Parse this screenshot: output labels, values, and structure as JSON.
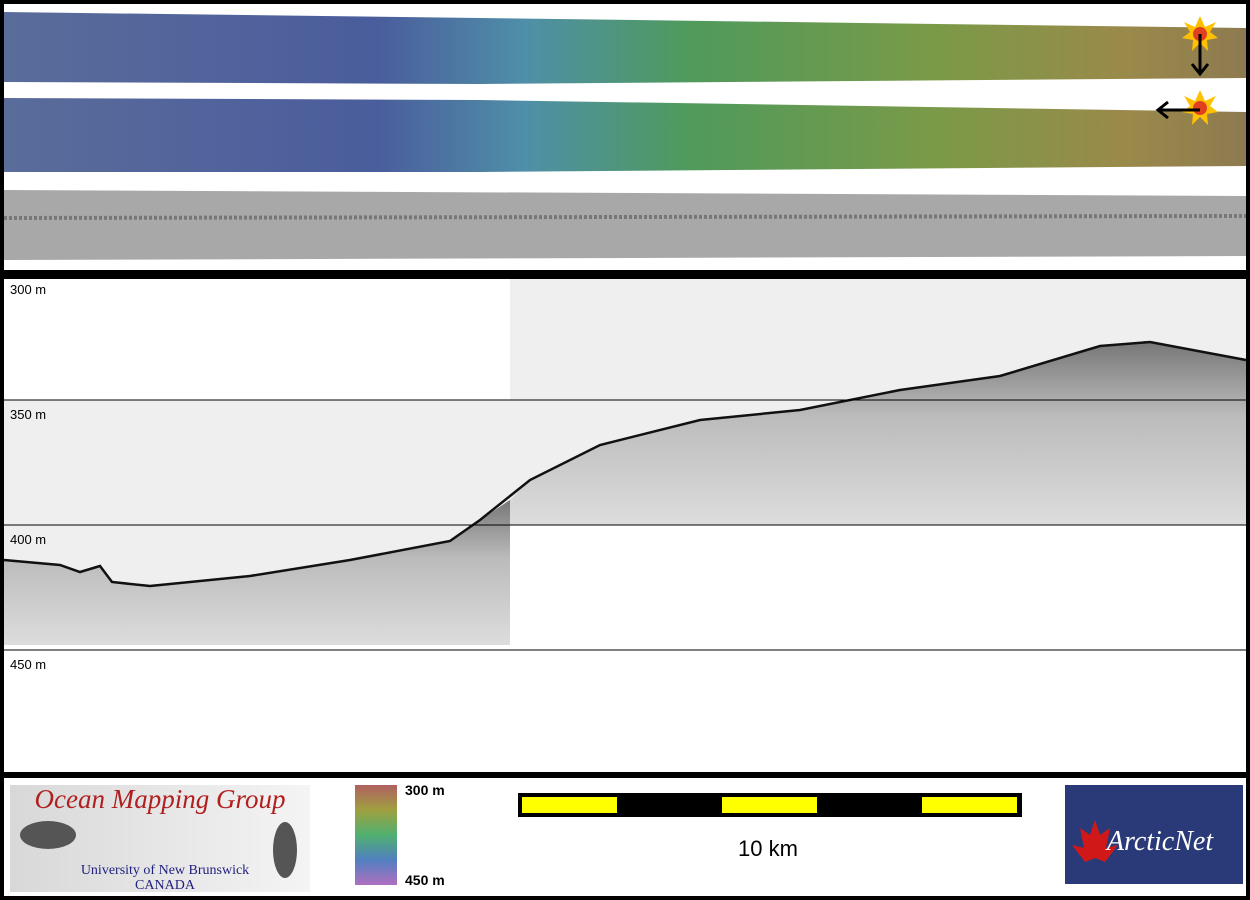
{
  "profile": {
    "depth_labels": [
      "300 m",
      "350 m",
      "400 m",
      "450 m"
    ]
  },
  "footer": {
    "logo_left": {
      "title": "Ocean Mapping Group",
      "line1": "University of New Brunswick",
      "line2": "CANADA"
    },
    "colorbar": {
      "top": "300 m",
      "bottom": "450 m"
    },
    "scale_bar": {
      "label": "10 km"
    },
    "logo_right": {
      "text": "ArcticNet"
    }
  }
}
